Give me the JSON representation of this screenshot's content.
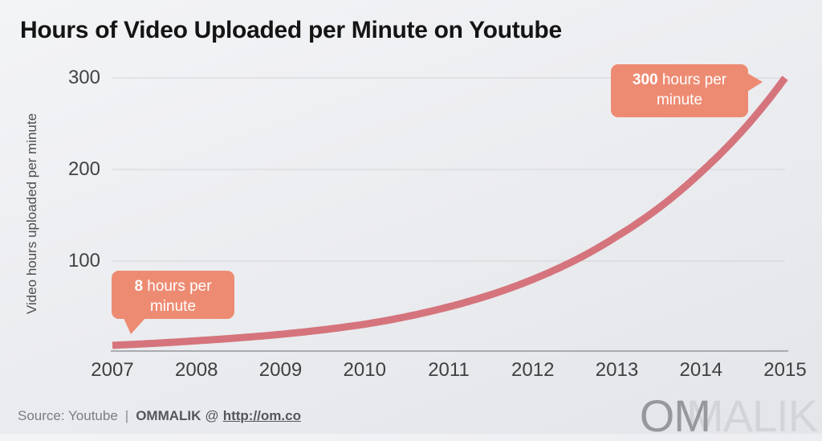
{
  "title": "Hours of Video Uploaded per Minute on Youtube",
  "chart_data": {
    "type": "line",
    "title": "Hours of Video Uploaded per Minute on Youtube",
    "xlabel": "",
    "ylabel": "Video hours uploaded per minute",
    "x": [
      2007,
      2008,
      2009,
      2010,
      2011,
      2012,
      2013,
      2014,
      2015
    ],
    "series": [
      {
        "name": "Video hours uploaded per minute",
        "values": [
          8,
          13,
          20,
          31,
          50,
          80,
          127,
          197,
          300
        ],
        "color": "#d5747c"
      }
    ],
    "yticks": [
      300,
      200,
      100
    ],
    "ylim": [
      0,
      310
    ],
    "xlim": [
      2007,
      2015
    ],
    "grid": true,
    "legend": false,
    "interpolation": "smooth-exponential",
    "annotations": [
      {
        "target_x": 2007,
        "target_value": 8,
        "label": "8 hours per minute"
      },
      {
        "target_x": 2015,
        "target_value": 300,
        "label": "300 hours per minute"
      }
    ]
  },
  "annotations": {
    "start": {
      "value": "8",
      "rest": " hours per",
      "line2": "minute"
    },
    "end": {
      "value": "300",
      "rest": " hours per",
      "line2": "minute"
    }
  },
  "footer": {
    "source": "Source: Youtube",
    "separator": "|",
    "author": "OMMALIK",
    "at": "@",
    "link": "http://om.co"
  },
  "watermark": {
    "part1": "OM",
    "part2": "MALIK"
  },
  "colors": {
    "background_top": "#f3f4f6",
    "background_bottom": "#e3e5e9",
    "title_text": "#141414",
    "line": "#d5747c",
    "callout_bg": "#ed8b72",
    "callout_text": "#ffffff",
    "gridline": "#d2d4d7",
    "axis_line": "#a9abae",
    "tick_text": "#424345",
    "axis_label_text": "#4d4e50",
    "footer_light": "#7b7c7f",
    "footer_dark": "#555659",
    "watermark_dark": "#97989c",
    "watermark_light": "#d3d4d7"
  }
}
